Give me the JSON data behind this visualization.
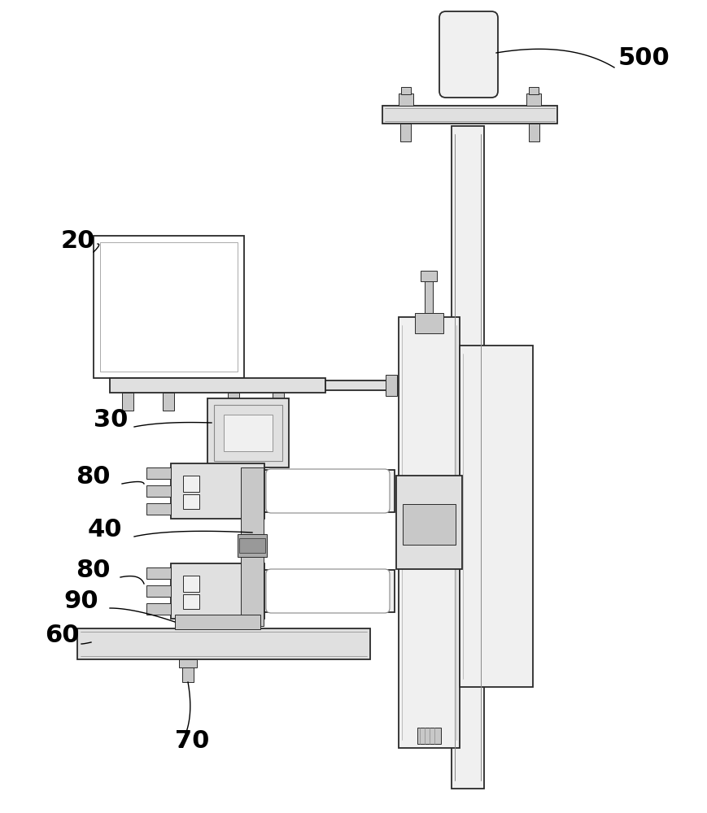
{
  "bg_color": "#ffffff",
  "lc": "#2a2a2a",
  "fc_white": "#ffffff",
  "fc_light": "#f0f0f0",
  "fc_mid": "#e0e0e0",
  "fc_dark": "#c8c8c8",
  "fc_vdark": "#aaaaaa",
  "figsize": [
    8.69,
    10.0
  ],
  "dpi": 100,
  "xlim": [
    0,
    869
  ],
  "ylim": [
    0,
    1000
  ]
}
